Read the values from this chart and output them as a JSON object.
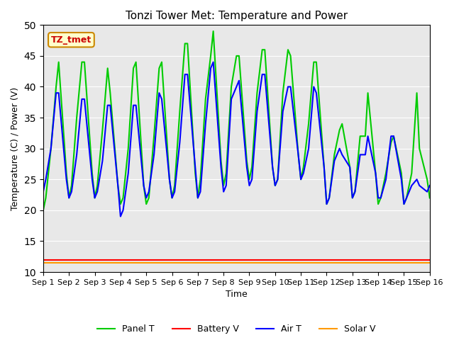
{
  "title": "Tonzi Tower Met: Temperature and Power",
  "xlabel": "Time",
  "ylabel": "Temperature (C) / Power (V)",
  "ylim": [
    10,
    50
  ],
  "xlim": [
    0,
    15
  ],
  "xtick_labels": [
    "Sep 1",
    "Sep 2",
    "Sep 3",
    "Sep 4",
    "Sep 5",
    "Sep 6",
    "Sep 7",
    "Sep 8",
    "Sep 9",
    "Sep 10",
    "Sep 11",
    "Sep 12",
    "Sep 13",
    "Sep 14",
    "Sep 15",
    "Sep 16"
  ],
  "xtick_positions": [
    0,
    1,
    2,
    3,
    4,
    5,
    6,
    7,
    8,
    9,
    10,
    11,
    12,
    13,
    14,
    15
  ],
  "bg_color": "#e8e8e8",
  "fig_bg_color": "#ffffff",
  "annotation_text": "TZ_tmet",
  "annotation_bg": "#ffffcc",
  "annotation_border": "#cc8800",
  "annotation_text_color": "#cc0000",
  "series": {
    "panel_t": {
      "label": "Panel T",
      "color": "#00cc00",
      "linewidth": 1.5
    },
    "battery_v": {
      "label": "Battery V",
      "color": "#ff0000",
      "linewidth": 1.5
    },
    "air_t": {
      "label": "Air T",
      "color": "#0000ff",
      "linewidth": 1.5
    },
    "solar_v": {
      "label": "Solar V",
      "color": "#ff9900",
      "linewidth": 1.5
    }
  },
  "panel_t_x": [
    0,
    0.1,
    0.3,
    0.5,
    0.6,
    0.9,
    1.0,
    1.1,
    1.3,
    1.5,
    1.6,
    1.9,
    2.0,
    2.1,
    2.3,
    2.5,
    2.6,
    2.9,
    3.0,
    3.1,
    3.3,
    3.5,
    3.6,
    3.9,
    4.0,
    4.1,
    4.3,
    4.5,
    4.6,
    4.9,
    5.0,
    5.1,
    5.3,
    5.5,
    5.6,
    5.9,
    6.0,
    6.1,
    6.3,
    6.5,
    6.6,
    6.9,
    7.0,
    7.1,
    7.3,
    7.5,
    7.6,
    7.9,
    8.0,
    8.1,
    8.3,
    8.5,
    8.6,
    8.9,
    9.0,
    9.1,
    9.3,
    9.5,
    9.6,
    9.9,
    10.0,
    10.1,
    10.3,
    10.5,
    10.6,
    10.9,
    11.0,
    11.1,
    11.3,
    11.5,
    11.6,
    11.9,
    12.0,
    12.1,
    12.3,
    12.5,
    12.6,
    12.9,
    13.0,
    13.1,
    13.3,
    13.5,
    13.6,
    13.9,
    14.0,
    14.1,
    14.3,
    14.5,
    14.6,
    14.9,
    15.0
  ],
  "panel_t_y": [
    20,
    22,
    30,
    40,
    44,
    26,
    22,
    24,
    35,
    44,
    44,
    26,
    22,
    24,
    33,
    43,
    39,
    24,
    21,
    22,
    30,
    43,
    44,
    24,
    21,
    22,
    32,
    43,
    44,
    25,
    22,
    24,
    36,
    47,
    47,
    26,
    22,
    25,
    38,
    45,
    49,
    28,
    24,
    26,
    40,
    45,
    45,
    28,
    25,
    27,
    39,
    46,
    46,
    27,
    24,
    25,
    39,
    46,
    45,
    29,
    25,
    27,
    34,
    44,
    44,
    27,
    21,
    22,
    29,
    33,
    34,
    27,
    22,
    23,
    32,
    32,
    39,
    26,
    21,
    22,
    26,
    31,
    32,
    26,
    21,
    22,
    26,
    39,
    30,
    25,
    22
  ],
  "air_t_x": [
    0,
    0.1,
    0.3,
    0.5,
    0.6,
    0.9,
    1.0,
    1.1,
    1.3,
    1.5,
    1.6,
    1.9,
    2.0,
    2.1,
    2.3,
    2.5,
    2.6,
    2.9,
    3.0,
    3.1,
    3.3,
    3.5,
    3.6,
    3.9,
    4.0,
    4.1,
    4.3,
    4.5,
    4.6,
    4.9,
    5.0,
    5.1,
    5.3,
    5.5,
    5.6,
    5.9,
    6.0,
    6.1,
    6.3,
    6.5,
    6.6,
    6.9,
    7.0,
    7.1,
    7.3,
    7.5,
    7.6,
    7.9,
    8.0,
    8.1,
    8.3,
    8.5,
    8.6,
    8.9,
    9.0,
    9.1,
    9.3,
    9.5,
    9.6,
    9.9,
    10.0,
    10.1,
    10.3,
    10.5,
    10.6,
    10.9,
    11.0,
    11.1,
    11.3,
    11.5,
    11.6,
    11.9,
    12.0,
    12.1,
    12.3,
    12.5,
    12.6,
    12.9,
    13.0,
    13.1,
    13.3,
    13.5,
    13.6,
    13.9,
    14.0,
    14.1,
    14.3,
    14.5,
    14.6,
    14.9,
    15.0
  ],
  "air_t_y": [
    23,
    25,
    30,
    39,
    39,
    25,
    22,
    23,
    29,
    38,
    38,
    25,
    22,
    23,
    28,
    37,
    37,
    24,
    19,
    20,
    26,
    37,
    37,
    24,
    22,
    23,
    29,
    39,
    38,
    25,
    22,
    23,
    31,
    42,
    42,
    27,
    22,
    23,
    34,
    43,
    44,
    27,
    23,
    24,
    38,
    40,
    41,
    27,
    24,
    25,
    36,
    42,
    42,
    27,
    24,
    25,
    36,
    40,
    40,
    29,
    25,
    26,
    30,
    40,
    39,
    27,
    21,
    22,
    28,
    30,
    29,
    27,
    22,
    23,
    29,
    29,
    32,
    26,
    22,
    22,
    25,
    32,
    32,
    25,
    21,
    22,
    24,
    25,
    24,
    23,
    24
  ],
  "battery_v": 12.0,
  "solar_v": 11.5
}
